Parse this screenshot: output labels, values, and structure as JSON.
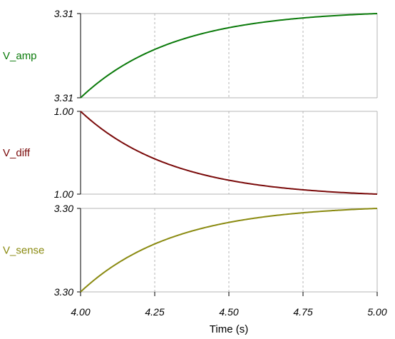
{
  "chart_data": {
    "type": "line",
    "x_label": "Time (s)",
    "x_range": [
      4.0,
      5.0
    ],
    "x_tick_labels": [
      "4.00",
      "4.25",
      "4.50",
      "4.75",
      "5.00"
    ],
    "x_tick_values": [
      4.0,
      4.25,
      4.5,
      4.75,
      5.0
    ],
    "grid": "vertical dashed",
    "panels": [
      {
        "name": "V_amp",
        "color": "#0a7a0a",
        "y_tick_labels": [
          "3.31",
          "3.31"
        ],
        "shape": "rising exponential approach from bottom to top",
        "x": [
          4.0,
          4.1,
          4.2,
          4.3,
          4.4,
          4.5,
          4.6,
          4.7,
          4.8,
          4.9,
          5.0
        ],
        "y_normalized": [
          0.0,
          0.32,
          0.53,
          0.68,
          0.79,
          0.86,
          0.91,
          0.95,
          0.97,
          0.99,
          1.0
        ]
      },
      {
        "name": "V_diff",
        "color": "#7a0a0a",
        "y_tick_labels": [
          "1.00",
          "1.00"
        ],
        "shape": "decaying exponential from top to bottom",
        "x": [
          4.0,
          4.1,
          4.2,
          4.3,
          4.4,
          4.5,
          4.6,
          4.7,
          4.8,
          4.9,
          5.0
        ],
        "y_normalized": [
          1.0,
          0.69,
          0.48,
          0.33,
          0.22,
          0.15,
          0.1,
          0.06,
          0.03,
          0.01,
          0.0
        ]
      },
      {
        "name": "V_sense",
        "color": "#8a8a10",
        "y_tick_labels": [
          "3.30",
          "3.30"
        ],
        "shape": "rising exponential approach from bottom to top",
        "x": [
          4.0,
          4.1,
          4.2,
          4.3,
          4.4,
          4.5,
          4.6,
          4.7,
          4.8,
          4.9,
          5.0
        ],
        "y_normalized": [
          0.0,
          0.28,
          0.48,
          0.63,
          0.74,
          0.82,
          0.88,
          0.93,
          0.96,
          0.98,
          1.0
        ]
      }
    ]
  }
}
